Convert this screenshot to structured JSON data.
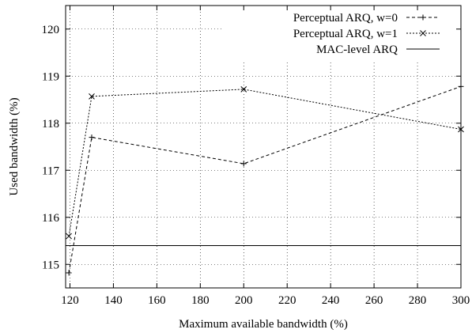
{
  "chart_data": {
    "type": "line",
    "xlabel": "Maximum available bandwidth (%)",
    "ylabel": "Used bandwidth (%)",
    "xlim": [
      118,
      300
    ],
    "ylim": [
      114.5,
      120.5
    ],
    "xticks": [
      120,
      140,
      160,
      180,
      200,
      220,
      240,
      260,
      280,
      300
    ],
    "yticks": [
      115,
      116,
      117,
      118,
      119,
      120
    ],
    "grid": true,
    "legend_position": "top-right",
    "series": [
      {
        "name": "Perceptual ARQ, w=0",
        "line_style": "dashed",
        "marker": "plus",
        "points": [
          [
            119.5,
            114.82
          ],
          [
            130,
            117.7
          ],
          [
            200,
            117.14
          ],
          [
            300,
            118.78
          ]
        ]
      },
      {
        "name": "Perceptual ARQ, w=1",
        "line_style": "dotted",
        "marker": "cross",
        "points": [
          [
            119.5,
            115.6
          ],
          [
            130,
            118.57
          ],
          [
            200,
            118.72
          ],
          [
            300,
            117.87
          ]
        ]
      },
      {
        "name": "MAC-level ARQ",
        "line_style": "solid",
        "marker": "none",
        "points": [
          [
            118,
            115.4
          ],
          [
            300,
            115.4
          ]
        ]
      }
    ]
  }
}
